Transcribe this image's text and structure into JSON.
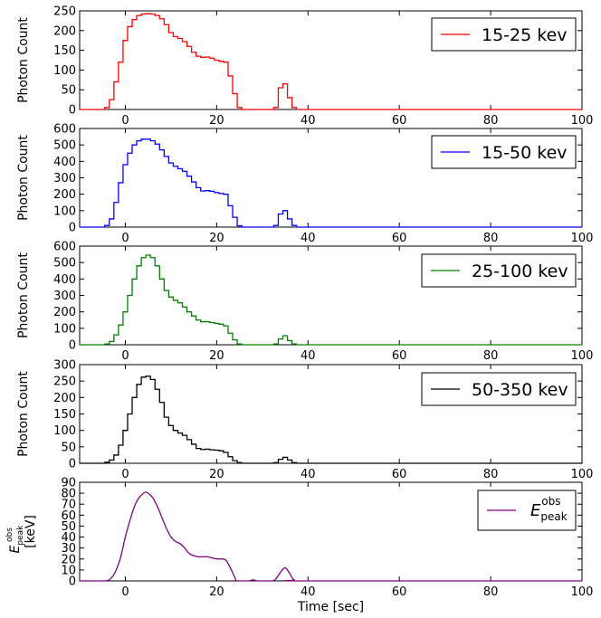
{
  "chart_data": [
    {
      "type": "line",
      "step": true,
      "ylabel": "Photon Count",
      "xlabel": "",
      "xlim": [
        -10,
        100
      ],
      "ylim": [
        0,
        250
      ],
      "xticks": [
        "0",
        "20",
        "40",
        "60",
        "80",
        "100"
      ],
      "xtick_values": [
        0,
        20,
        40,
        60,
        80,
        100
      ],
      "yticks": [
        "0",
        "50",
        "100",
        "150",
        "200",
        "250"
      ],
      "ytick_values": [
        0,
        50,
        100,
        150,
        200,
        250
      ],
      "legend": "15-25 kev",
      "legend_position": "top-right",
      "color": "#ff0000",
      "series": [
        {
          "name": "15-25 kev",
          "x": [
            -4,
            -3,
            -2,
            -1,
            0,
            1,
            2,
            3,
            4,
            5,
            6,
            7,
            8,
            9,
            10,
            11,
            12,
            13,
            14,
            15,
            16,
            17,
            18,
            19,
            20,
            21,
            22,
            23,
            24,
            25,
            33,
            34,
            35,
            36,
            37
          ],
          "values": [
            5,
            25,
            70,
            120,
            175,
            210,
            228,
            238,
            242,
            243,
            242,
            238,
            230,
            215,
            195,
            185,
            180,
            172,
            160,
            145,
            135,
            132,
            133,
            130,
            125,
            122,
            120,
            85,
            40,
            5,
            5,
            55,
            65,
            30,
            5
          ]
        }
      ]
    },
    {
      "type": "line",
      "step": true,
      "ylabel": "Photon Count",
      "xlabel": "",
      "xlim": [
        -10,
        100
      ],
      "ylim": [
        0,
        600
      ],
      "xticks": [
        "0",
        "20",
        "40",
        "60",
        "80",
        "100"
      ],
      "xtick_values": [
        0,
        20,
        40,
        60,
        80,
        100
      ],
      "yticks": [
        "0",
        "100",
        "200",
        "300",
        "400",
        "500",
        "600"
      ],
      "ytick_values": [
        0,
        100,
        200,
        300,
        400,
        500,
        600
      ],
      "legend": "15-50 kev",
      "legend_position": "top-right",
      "color": "#0000ff",
      "series": [
        {
          "name": "15-50 kev",
          "x": [
            -4,
            -3,
            -2,
            -1,
            0,
            1,
            2,
            3,
            4,
            5,
            6,
            7,
            8,
            9,
            10,
            11,
            12,
            13,
            14,
            15,
            16,
            17,
            18,
            19,
            20,
            21,
            22,
            23,
            24,
            25,
            33,
            34,
            35,
            36,
            37
          ],
          "values": [
            10,
            50,
            150,
            270,
            380,
            450,
            500,
            525,
            535,
            535,
            525,
            505,
            470,
            430,
            390,
            370,
            355,
            340,
            310,
            275,
            240,
            220,
            222,
            218,
            210,
            205,
            200,
            130,
            60,
            8,
            10,
            80,
            100,
            50,
            10
          ]
        }
      ]
    },
    {
      "type": "line",
      "step": true,
      "ylabel": "Photon Count",
      "xlabel": "",
      "xlim": [
        -10,
        100
      ],
      "ylim": [
        0,
        600
      ],
      "xticks": [
        "0",
        "20",
        "40",
        "60",
        "80",
        "100"
      ],
      "xtick_values": [
        0,
        20,
        40,
        60,
        80,
        100
      ],
      "yticks": [
        "0",
        "100",
        "200",
        "300",
        "400",
        "500",
        "600"
      ],
      "ytick_values": [
        0,
        100,
        200,
        300,
        400,
        500,
        600
      ],
      "legend": "25-100 kev",
      "legend_position": "top-right",
      "color": "#008000",
      "series": [
        {
          "name": "25-100 kev",
          "x": [
            -4,
            -3,
            -2,
            -1,
            0,
            1,
            2,
            3,
            4,
            5,
            6,
            7,
            8,
            9,
            10,
            11,
            12,
            13,
            14,
            15,
            16,
            17,
            18,
            19,
            20,
            21,
            22,
            23,
            24,
            25,
            33,
            34,
            35,
            36,
            37
          ],
          "values": [
            5,
            20,
            60,
            120,
            200,
            300,
            400,
            480,
            530,
            545,
            530,
            480,
            400,
            330,
            290,
            270,
            255,
            230,
            200,
            175,
            150,
            140,
            140,
            135,
            130,
            125,
            115,
            70,
            30,
            5,
            5,
            35,
            55,
            25,
            5
          ]
        }
      ]
    },
    {
      "type": "line",
      "step": true,
      "ylabel": "Photon Count",
      "xlabel": "",
      "xlim": [
        -10,
        100
      ],
      "ylim": [
        0,
        300
      ],
      "xticks": [
        "0",
        "20",
        "40",
        "60",
        "80",
        "100"
      ],
      "xtick_values": [
        0,
        20,
        40,
        60,
        80,
        100
      ],
      "yticks": [
        "0",
        "50",
        "100",
        "150",
        "200",
        "250",
        "300"
      ],
      "ytick_values": [
        0,
        50,
        100,
        150,
        200,
        250,
        300
      ],
      "legend": "50-350 kev",
      "legend_position": "top-right",
      "color": "#000000",
      "series": [
        {
          "name": "50-350 kev",
          "x": [
            -4,
            -3,
            -2,
            -1,
            0,
            1,
            2,
            3,
            4,
            5,
            6,
            7,
            8,
            9,
            10,
            11,
            12,
            13,
            14,
            15,
            16,
            17,
            18,
            19,
            20,
            21,
            22,
            23,
            24,
            25,
            33,
            34,
            35,
            36,
            37
          ],
          "values": [
            3,
            10,
            25,
            55,
            100,
            150,
            200,
            240,
            262,
            265,
            255,
            225,
            185,
            140,
            115,
            100,
            92,
            85,
            72,
            58,
            45,
            42,
            43,
            41,
            40,
            38,
            33,
            20,
            8,
            2,
            2,
            12,
            18,
            10,
            2
          ]
        }
      ]
    },
    {
      "type": "line",
      "step": false,
      "ylabel": "E_peak^obs [keV]",
      "ylabel_main": "E",
      "ylabel_sub": "peak",
      "ylabel_sup": "obs",
      "ylabel_unit": "[keV]",
      "xlabel": "Time [sec]",
      "xlim": [
        -10,
        100
      ],
      "ylim": [
        0,
        90
      ],
      "xticks": [
        "0",
        "20",
        "40",
        "60",
        "80",
        "100"
      ],
      "xtick_values": [
        0,
        20,
        40,
        60,
        80,
        100
      ],
      "yticks": [
        "0",
        "10",
        "20",
        "30",
        "40",
        "50",
        "60",
        "70",
        "80",
        "90"
      ],
      "ytick_values": [
        0,
        10,
        20,
        30,
        40,
        50,
        60,
        70,
        80,
        90
      ],
      "legend": "E_peak^obs",
      "legend_main": "E",
      "legend_sub": "peak",
      "legend_sup": "obs",
      "legend_position": "top-right",
      "color": "#800080",
      "series": [
        {
          "name": "E_peak^obs",
          "x": [
            -10,
            -4.5,
            -3,
            -2,
            -1,
            0,
            1,
            2,
            3,
            4,
            4.5,
            5,
            6,
            7,
            8,
            9,
            10,
            11,
            12,
            13,
            14,
            15,
            16,
            17,
            18,
            19,
            20,
            21,
            22,
            23,
            24,
            24.5,
            27,
            28,
            29,
            32,
            33,
            34,
            35,
            36,
            37,
            40,
            100
          ],
          "values": [
            0,
            0,
            3,
            10,
            22,
            40,
            55,
            68,
            76,
            80,
            81,
            80,
            76,
            68,
            58,
            48,
            40,
            36,
            34,
            30,
            25,
            23,
            22,
            22,
            22,
            21,
            20,
            20,
            19,
            12,
            3,
            0,
            0,
            1,
            0,
            0,
            2,
            8,
            12,
            7,
            1,
            0,
            0
          ]
        }
      ]
    }
  ]
}
